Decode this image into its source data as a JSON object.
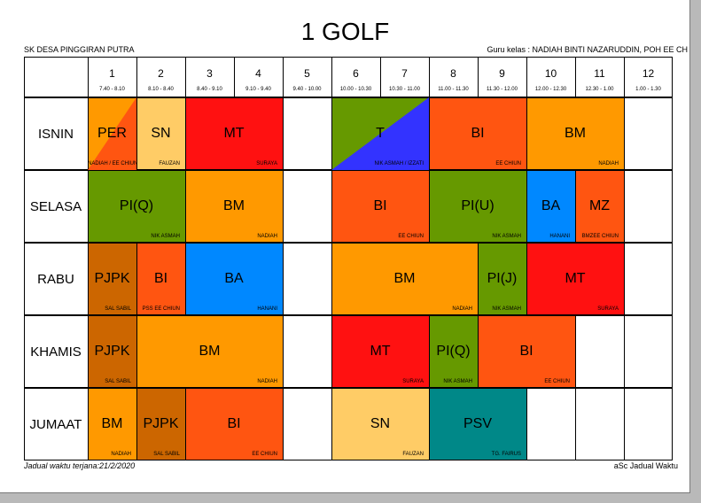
{
  "title": "1 GOLF",
  "school": "SK DESA PINGGIRAN PUTRA",
  "teacher_line": "Guru kelas : NADIAH BINTI NAZARUDDIN, POH EE CH",
  "footer_left": "Jadual waktu terjana:21/2/2020",
  "footer_right": "aSc Jadual Waktu",
  "periods": [
    {
      "num": "1",
      "time": "7.40 - 8.10"
    },
    {
      "num": "2",
      "time": "8.10 - 8.40"
    },
    {
      "num": "3",
      "time": "8.40 - 9.10"
    },
    {
      "num": "4",
      "time": "9.10 - 9.40"
    },
    {
      "num": "5",
      "time": "9.40 - 10.00"
    },
    {
      "num": "6",
      "time": "10.00 - 10.30"
    },
    {
      "num": "7",
      "time": "10.30 - 11.00"
    },
    {
      "num": "8",
      "time": "11.00 - 11.30"
    },
    {
      "num": "9",
      "time": "11.30 - 12.00"
    },
    {
      "num": "10",
      "time": "12.00 - 12.30"
    },
    {
      "num": "11",
      "time": "12.30 - 1.00"
    },
    {
      "num": "12",
      "time": "1.00 - 1.30"
    }
  ],
  "days": [
    "ISNIN",
    "SELASA",
    "RABU",
    "KHAMIS",
    "JUMAAT"
  ],
  "colors": {
    "orange": "#ff9900",
    "red_orange": "#ff5511",
    "red": "#ff1111",
    "green": "#669900",
    "blue": "#0088ff",
    "dark_blue": "#3333ff",
    "light_orange": "#ffcc66",
    "brown": "#cc6600",
    "teal": "#008888"
  },
  "lessons": [
    {
      "day": 0,
      "start": 1,
      "span": 1,
      "subject": "PER",
      "teacher": "NADIAH / EE CHIUN",
      "color": "orange",
      "color2": "red_orange",
      "split": "down",
      "teacher_center": true
    },
    {
      "day": 0,
      "start": 2,
      "span": 1,
      "subject": "SN",
      "teacher": "FAUZAN",
      "color": "light_orange"
    },
    {
      "day": 0,
      "start": 3,
      "span": 2,
      "subject": "MT",
      "teacher": "SURAYA",
      "color": "red"
    },
    {
      "day": 0,
      "start": 6,
      "span": 2,
      "subject": "T",
      "teacher": "NIK ASMAH / IZZATI",
      "color": "green",
      "color2": "dark_blue",
      "split": "up"
    },
    {
      "day": 0,
      "start": 8,
      "span": 2,
      "subject": "BI",
      "teacher": "EE CHIUN",
      "color": "red_orange"
    },
    {
      "day": 0,
      "start": 10,
      "span": 2,
      "subject": "BM",
      "teacher": "NADIAH",
      "color": "orange"
    },
    {
      "day": 1,
      "start": 1,
      "span": 2,
      "subject": "PI(Q)",
      "teacher": "NIK ASMAH",
      "color": "green"
    },
    {
      "day": 1,
      "start": 3,
      "span": 2,
      "subject": "BM",
      "teacher": "NADIAH",
      "color": "orange"
    },
    {
      "day": 1,
      "start": 6,
      "span": 2,
      "subject": "BI",
      "teacher": "EE CHIUN",
      "color": "red_orange"
    },
    {
      "day": 1,
      "start": 8,
      "span": 2,
      "subject": "PI(U)",
      "teacher": "NIK ASMAH",
      "color": "green"
    },
    {
      "day": 1,
      "start": 10,
      "span": 1,
      "subject": "BA",
      "teacher": "HANANI",
      "color": "blue"
    },
    {
      "day": 1,
      "start": 11,
      "span": 1,
      "subject": "MZ",
      "teacher": "BMZEE CHIUN",
      "color": "red_orange"
    },
    {
      "day": 2,
      "start": 1,
      "span": 1,
      "subject": "PJPK",
      "teacher": "SAL SABIL",
      "color": "brown"
    },
    {
      "day": 2,
      "start": 2,
      "span": 1,
      "subject": "BI",
      "teacher": "PSS EE CHIUN",
      "color": "red_orange"
    },
    {
      "day": 2,
      "start": 3,
      "span": 2,
      "subject": "BA",
      "teacher": "HANANI",
      "color": "blue"
    },
    {
      "day": 2,
      "start": 6,
      "span": 3,
      "subject": "BM",
      "teacher": "NADIAH",
      "color": "orange"
    },
    {
      "day": 2,
      "start": 9,
      "span": 1,
      "subject": "PI(J)",
      "teacher": "NIK ASMAH",
      "color": "green"
    },
    {
      "day": 2,
      "start": 10,
      "span": 2,
      "subject": "MT",
      "teacher": "SURAYA",
      "color": "red"
    },
    {
      "day": 3,
      "start": 1,
      "span": 1,
      "subject": "PJPK",
      "teacher": "SAL SABIL",
      "color": "brown"
    },
    {
      "day": 3,
      "start": 2,
      "span": 3,
      "subject": "BM",
      "teacher": "NADIAH",
      "color": "orange"
    },
    {
      "day": 3,
      "start": 6,
      "span": 2,
      "subject": "MT",
      "teacher": "SURAYA",
      "color": "red"
    },
    {
      "day": 3,
      "start": 8,
      "span": 1,
      "subject": "PI(Q)",
      "teacher": "NIK ASMAH",
      "color": "green"
    },
    {
      "day": 3,
      "start": 9,
      "span": 2,
      "subject": "BI",
      "teacher": "EE CHIUN",
      "color": "red_orange"
    },
    {
      "day": 4,
      "start": 1,
      "span": 1,
      "subject": "BM",
      "teacher": "NADIAH",
      "color": "orange"
    },
    {
      "day": 4,
      "start": 2,
      "span": 1,
      "subject": "PJPK",
      "teacher": "SAL SABIL",
      "color": "brown"
    },
    {
      "day": 4,
      "start": 3,
      "span": 2,
      "subject": "BI",
      "teacher": "EE CHIUN",
      "color": "red_orange"
    },
    {
      "day": 4,
      "start": 6,
      "span": 2,
      "subject": "SN",
      "teacher": "FAUZAN",
      "color": "light_orange"
    },
    {
      "day": 4,
      "start": 8,
      "span": 2,
      "subject": "PSV",
      "teacher": "TG. FAIRUS",
      "color": "teal"
    }
  ]
}
